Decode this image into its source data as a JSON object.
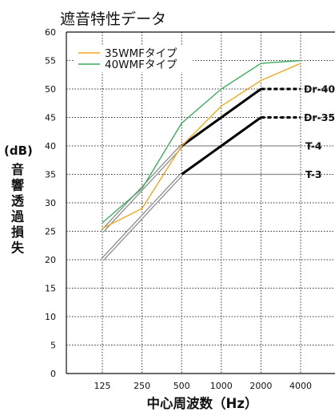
{
  "chart_data": {
    "type": "line",
    "title": "遮音特性データ",
    "xlabel": "中心周波数（Hz）",
    "ylabel": "音響透過損失",
    "yunit": "(dB)",
    "x": [
      "125",
      "250",
      "500",
      "1000",
      "2000",
      "4000"
    ],
    "ylim": [
      0,
      60
    ],
    "yticks": [
      0,
      5,
      10,
      15,
      20,
      25,
      30,
      35,
      40,
      45,
      50,
      55,
      60
    ],
    "grid": true,
    "legend_position": "top-left",
    "series": [
      {
        "name": "35WMFタイプ",
        "color": "#f5a91e",
        "values": [
          25.5,
          29,
          40,
          47,
          51.5,
          54.5
        ]
      },
      {
        "name": "40WMFタイプ",
        "color": "#3bae5f",
        "values": [
          26.5,
          32.5,
          44,
          50,
          54.5,
          55
        ]
      }
    ],
    "reference_curves": [
      {
        "name": "Dr-40",
        "color": "#000000",
        "values": [
          null,
          null,
          40,
          45,
          50,
          50
        ]
      },
      {
        "name": "Dr-35",
        "color": "#000000",
        "values": [
          null,
          null,
          35,
          40,
          45,
          45
        ]
      },
      {
        "name": "T-4",
        "color": "#8a8a8a",
        "values": [
          25,
          32.5,
          40,
          40,
          40,
          40
        ]
      },
      {
        "name": "T-3",
        "color": "#8a8a8a",
        "values": [
          20,
          27.5,
          35,
          35,
          35,
          35
        ]
      }
    ]
  }
}
